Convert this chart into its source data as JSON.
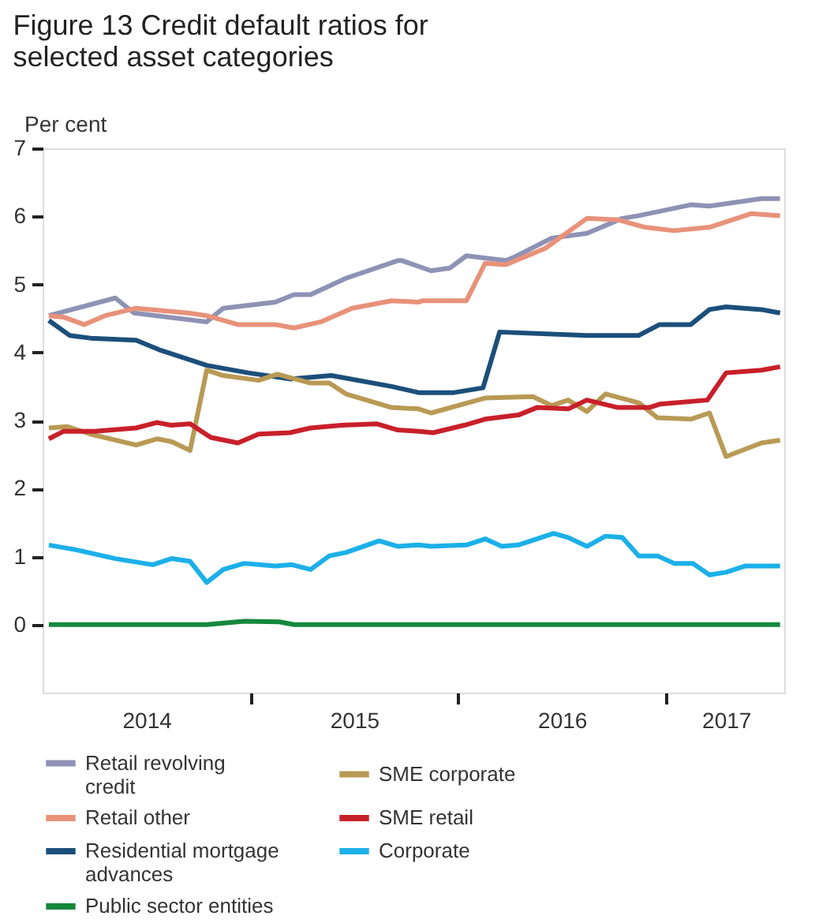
{
  "chart_data": {
    "type": "line",
    "title": "Figure 13  Credit default ratios for selected asset categories",
    "ylabel": "Per cent",
    "xlim": [
      2014,
      2017.57
    ],
    "xticks": [
      {
        "value": 2014.5,
        "label": "2014"
      },
      {
        "value": 2015,
        "label": null
      },
      {
        "value": 2015.5,
        "label": "2015"
      },
      {
        "value": 2016,
        "label": null
      },
      {
        "value": 2016.5,
        "label": "2016"
      },
      {
        "value": 2017,
        "label": null
      },
      {
        "value": 2017.29,
        "label": "2017"
      }
    ],
    "ylim": [
      -1,
      7
    ],
    "yticks": [
      0,
      1,
      2,
      3,
      4,
      5,
      6,
      7
    ],
    "grid": false,
    "legend": "bottom",
    "marker": "none",
    "line_style": "solid",
    "series": [
      {
        "name": "Retail revolving credit",
        "color": "#8e92b4",
        "x": [
          2014.03,
          2014.35,
          2014.44,
          2014.79,
          2014.87,
          2015.12,
          2015.21,
          2015.29,
          2015.46,
          2015.71,
          2015.73,
          2015.87,
          2015.96,
          2016.04,
          2016.23,
          2016.27,
          2016.45,
          2016.62,
          2016.79,
          2016.87,
          2017.12,
          2017.21,
          2017.46,
          2017.55
        ],
        "values": [
          4.54,
          4.8,
          4.58,
          4.45,
          4.65,
          4.74,
          4.85,
          4.85,
          5.09,
          5.35,
          5.35,
          5.2,
          5.24,
          5.42,
          5.35,
          5.4,
          5.68,
          5.75,
          5.97,
          6.01,
          6.17,
          6.15,
          6.26,
          6.26
        ]
      },
      {
        "name": "Retail other",
        "color": "#e8927a",
        "x": [
          2014.03,
          2014.1,
          2014.2,
          2014.3,
          2014.45,
          2014.7,
          2014.79,
          2014.94,
          2015.12,
          2015.21,
          2015.34,
          2015.49,
          2015.68,
          2015.81,
          2015.83,
          2016.04,
          2016.13,
          2016.23,
          2016.42,
          2016.62,
          2016.77,
          2016.9,
          2017.04,
          2017.21,
          2017.41,
          2017.55
        ],
        "values": [
          4.54,
          4.52,
          4.41,
          4.54,
          4.65,
          4.58,
          4.54,
          4.41,
          4.41,
          4.36,
          4.45,
          4.65,
          4.76,
          4.74,
          4.76,
          4.76,
          5.31,
          5.29,
          5.53,
          5.97,
          5.95,
          5.84,
          5.79,
          5.84,
          6.04,
          6.01
        ]
      },
      {
        "name": "Residential mortgage advances",
        "color": "#1c4f7a",
        "x": [
          2014.03,
          2014.13,
          2014.23,
          2014.45,
          2014.57,
          2014.79,
          2014.99,
          2015.19,
          2015.39,
          2015.68,
          2015.81,
          2015.86,
          2015.98,
          2016.12,
          2016.2,
          2016.62,
          2016.87,
          2016.97,
          2017.12,
          2017.21,
          2017.29,
          2017.46,
          2017.55
        ],
        "values": [
          4.47,
          4.25,
          4.21,
          4.18,
          4.03,
          3.81,
          3.7,
          3.61,
          3.66,
          3.5,
          3.41,
          3.41,
          3.41,
          3.48,
          4.3,
          4.25,
          4.25,
          4.41,
          4.41,
          4.63,
          4.67,
          4.63,
          4.58
        ]
      },
      {
        "name": "SME corporate",
        "color": "#b89a55",
        "x": [
          2014.03,
          2014.12,
          2014.23,
          2014.45,
          2014.55,
          2014.62,
          2014.71,
          2014.79,
          2014.87,
          2015.04,
          2015.13,
          2015.29,
          2015.38,
          2015.46,
          2015.68,
          2015.81,
          2015.87,
          2016.13,
          2016.36,
          2016.45,
          2016.53,
          2016.62,
          2016.71,
          2016.87,
          2016.96,
          2017.12,
          2017.21,
          2017.29,
          2017.46,
          2017.55
        ],
        "values": [
          2.89,
          2.91,
          2.8,
          2.64,
          2.73,
          2.69,
          2.56,
          3.74,
          3.66,
          3.59,
          3.68,
          3.55,
          3.55,
          3.39,
          3.19,
          3.17,
          3.11,
          3.33,
          3.35,
          3.22,
          3.3,
          3.13,
          3.39,
          3.26,
          3.04,
          3.02,
          3.11,
          2.47,
          2.67,
          2.71
        ]
      },
      {
        "name": "SME retail",
        "color": "#c8202a",
        "x": [
          2014.03,
          2014.1,
          2014.25,
          2014.45,
          2014.55,
          2014.62,
          2014.71,
          2014.81,
          2014.94,
          2015.04,
          2015.19,
          2015.29,
          2015.44,
          2015.61,
          2015.71,
          2015.81,
          2015.88,
          2016.03,
          2016.13,
          2016.29,
          2016.38,
          2016.53,
          2016.62,
          2016.77,
          2016.92,
          2016.97,
          2017.2,
          2017.29,
          2017.46,
          2017.55
        ],
        "values": [
          2.73,
          2.84,
          2.84,
          2.89,
          2.97,
          2.93,
          2.95,
          2.75,
          2.67,
          2.8,
          2.82,
          2.89,
          2.93,
          2.95,
          2.86,
          2.84,
          2.82,
          2.93,
          3.02,
          3.08,
          3.19,
          3.17,
          3.3,
          3.19,
          3.19,
          3.24,
          3.3,
          3.7,
          3.74,
          3.79
        ]
      },
      {
        "name": "Corporate",
        "color": "#1cb0e8",
        "x": [
          2014.03,
          2014.16,
          2014.35,
          2014.53,
          2014.62,
          2014.71,
          2014.79,
          2014.87,
          2014.97,
          2015.12,
          2015.2,
          2015.29,
          2015.38,
          2015.46,
          2015.62,
          2015.71,
          2015.81,
          2015.87,
          2016.04,
          2016.13,
          2016.21,
          2016.29,
          2016.46,
          2016.53,
          2016.62,
          2016.71,
          2016.79,
          2016.87,
          2016.96,
          2017.04,
          2017.13,
          2017.21,
          2017.29,
          2017.38,
          2017.55
        ],
        "values": [
          1.17,
          1.1,
          0.97,
          0.88,
          0.97,
          0.93,
          0.62,
          0.81,
          0.9,
          0.86,
          0.88,
          0.81,
          1.01,
          1.06,
          1.23,
          1.15,
          1.17,
          1.15,
          1.17,
          1.26,
          1.15,
          1.17,
          1.34,
          1.28,
          1.15,
          1.3,
          1.28,
          1.01,
          1.01,
          0.9,
          0.9,
          0.73,
          0.77,
          0.86,
          0.86
        ]
      },
      {
        "name": "Public sector entities",
        "color": "#14883c",
        "x": [
          2014.03,
          2014.79,
          2014.97,
          2015.14,
          2015.21,
          2017.55
        ],
        "values": [
          0,
          0,
          0.05,
          0.04,
          0,
          0
        ]
      }
    ]
  }
}
